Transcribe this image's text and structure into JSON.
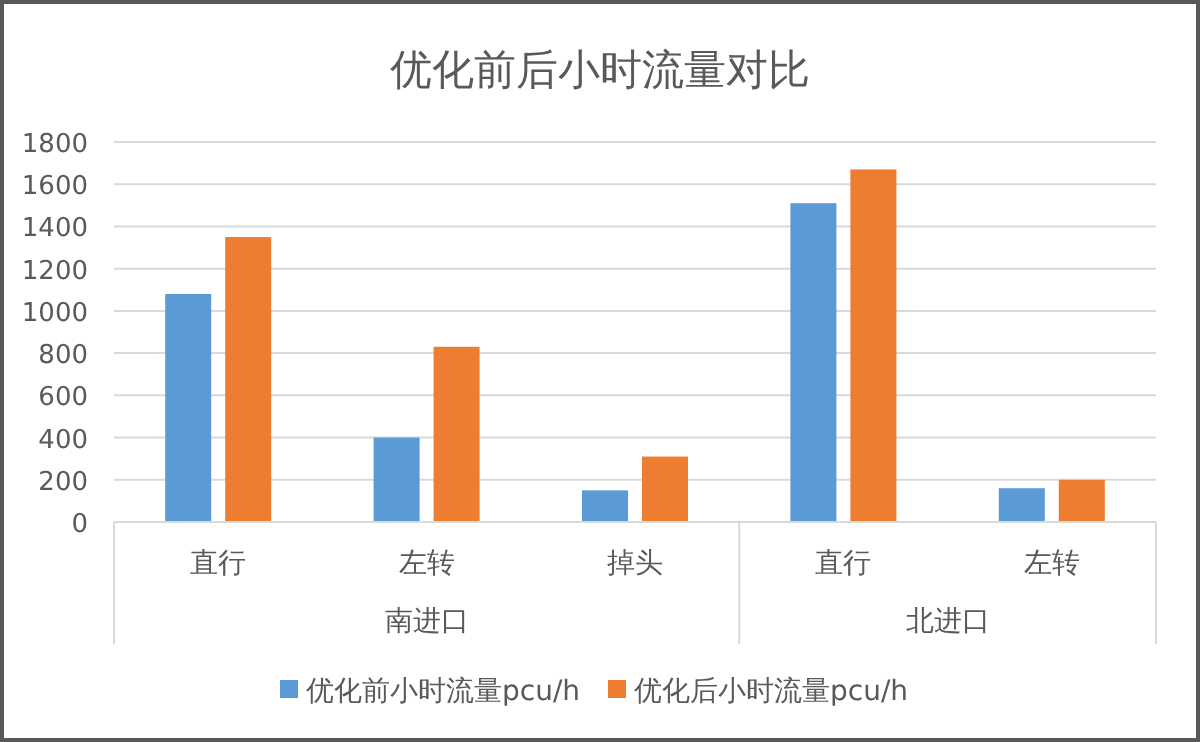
{
  "chart_data": {
    "type": "bar",
    "title": "优化前后小时流量对比",
    "categories": [
      "直行",
      "左转",
      "掉头",
      "直行",
      "左转"
    ],
    "series": [
      {
        "name": "优化前小时流量pcu/h",
        "color": "#5b9bd5",
        "values": [
          1080,
          400,
          150,
          1510,
          160
        ]
      },
      {
        "name": "优化后小时流量pcu/h",
        "color": "#ed7d31",
        "values": [
          1350,
          830,
          310,
          1670,
          200
        ]
      }
    ],
    "annotations": [
      "南进口",
      "北进口"
    ],
    "ylim": [
      0,
      1800
    ],
    "yticks": [
      0,
      200,
      400,
      600,
      800,
      1000,
      1200,
      1400,
      1600,
      1800
    ],
    "grid": "y",
    "legend": "bottom"
  }
}
